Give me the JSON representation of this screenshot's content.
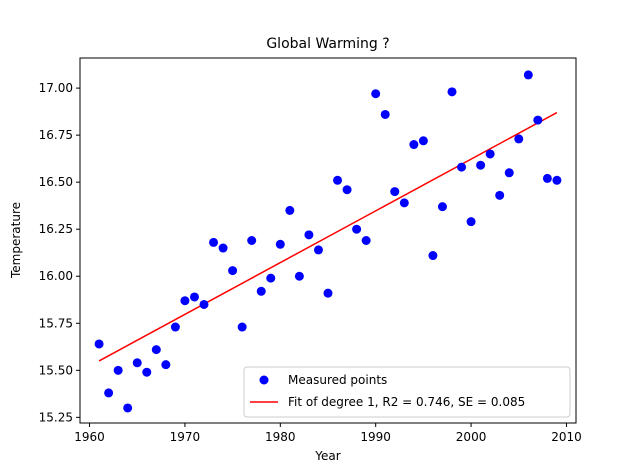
{
  "chart_data": {
    "type": "scatter",
    "title": "Global Warming ?",
    "xlabel": "Year",
    "ylabel": "Temperature",
    "xlim": [
      1959,
      2011
    ],
    "ylim": [
      15.22,
      17.16
    ],
    "xticks": [
      1960,
      1970,
      1980,
      1990,
      2000,
      2010
    ],
    "yticks": [
      15.25,
      15.5,
      15.75,
      16.0,
      16.25,
      16.5,
      16.75,
      17.0
    ],
    "ytick_labels": [
      "15.25",
      "15.50",
      "15.75",
      "16.00",
      "16.25",
      "16.50",
      "16.75",
      "17.00"
    ],
    "grid": false,
    "legend_position": "lower-right",
    "series": [
      {
        "name": "Measured points",
        "kind": "scatter",
        "color": "#0000ff",
        "x": [
          1961,
          1962,
          1963,
          1964,
          1965,
          1966,
          1967,
          1968,
          1969,
          1970,
          1971,
          1972,
          1973,
          1974,
          1975,
          1976,
          1977,
          1978,
          1979,
          1980,
          1981,
          1982,
          1983,
          1984,
          1985,
          1986,
          1987,
          1988,
          1989,
          1990,
          1991,
          1992,
          1993,
          1994,
          1995,
          1996,
          1997,
          1998,
          1999,
          2000,
          2001,
          2002,
          2003,
          2004,
          2005,
          2006,
          2007,
          2008,
          2009
        ],
        "y": [
          15.64,
          15.38,
          15.5,
          15.3,
          15.54,
          15.49,
          15.61,
          15.53,
          15.73,
          15.87,
          15.89,
          15.85,
          16.18,
          16.15,
          16.03,
          15.73,
          16.19,
          15.92,
          15.99,
          16.17,
          16.35,
          16.0,
          16.22,
          16.14,
          15.91,
          16.51,
          16.46,
          16.25,
          16.19,
          16.97,
          16.86,
          16.45,
          16.39,
          16.7,
          16.72,
          16.11,
          16.37,
          16.98,
          16.58,
          16.29,
          16.59,
          16.65,
          16.43,
          16.55,
          16.73,
          17.07,
          16.83,
          16.52,
          16.51
        ]
      },
      {
        "name": "Fit of degree 1, R2 = 0.746, SE = 0.085",
        "kind": "line",
        "color": "#ff0000",
        "x": [
          1961,
          2009
        ],
        "y": [
          15.55,
          16.87
        ]
      }
    ]
  }
}
